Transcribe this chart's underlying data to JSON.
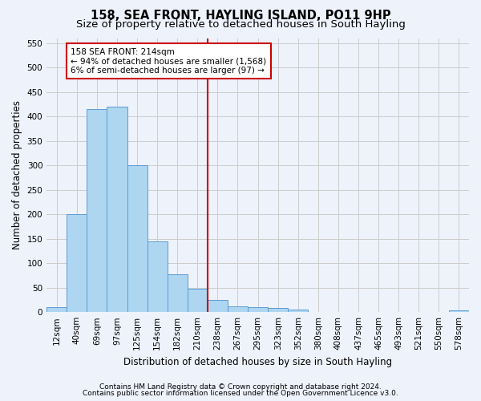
{
  "title": "158, SEA FRONT, HAYLING ISLAND, PO11 9HP",
  "subtitle": "Size of property relative to detached houses in South Hayling",
  "xlabel": "Distribution of detached houses by size in South Hayling",
  "ylabel": "Number of detached properties",
  "footnote1": "Contains HM Land Registry data © Crown copyright and database right 2024.",
  "footnote2": "Contains public sector information licensed under the Open Government Licence v3.0.",
  "bar_labels": [
    "12sqm",
    "40sqm",
    "69sqm",
    "97sqm",
    "125sqm",
    "154sqm",
    "182sqm",
    "210sqm",
    "238sqm",
    "267sqm",
    "295sqm",
    "323sqm",
    "352sqm",
    "380sqm",
    "408sqm",
    "437sqm",
    "465sqm",
    "493sqm",
    "521sqm",
    "550sqm",
    "578sqm"
  ],
  "bar_values": [
    10,
    200,
    415,
    420,
    300,
    145,
    78,
    48,
    25,
    12,
    10,
    8,
    5,
    0,
    0,
    0,
    0,
    0,
    0,
    0,
    4
  ],
  "bar_color": "#aed6f1",
  "bar_edge_color": "#5b9bd5",
  "vline_index": 7,
  "vline_color": "#cc0000",
  "annotation_title": "158 SEA FRONT: 214sqm",
  "annotation_line1": "← 94% of detached houses are smaller (1,568)",
  "annotation_line2": "6% of semi-detached houses are larger (97) →",
  "annotation_box_color": "#cc0000",
  "ylim": [
    0,
    560
  ],
  "yticks": [
    0,
    50,
    100,
    150,
    200,
    250,
    300,
    350,
    400,
    450,
    500,
    550
  ],
  "grid_color": "#cccccc",
  "background_color": "#eef2fb",
  "title_fontsize": 10.5,
  "subtitle_fontsize": 9.5,
  "axis_label_fontsize": 8.5,
  "tick_fontsize": 7.5,
  "annot_fontsize": 7.5,
  "footnote_fontsize": 6.5
}
